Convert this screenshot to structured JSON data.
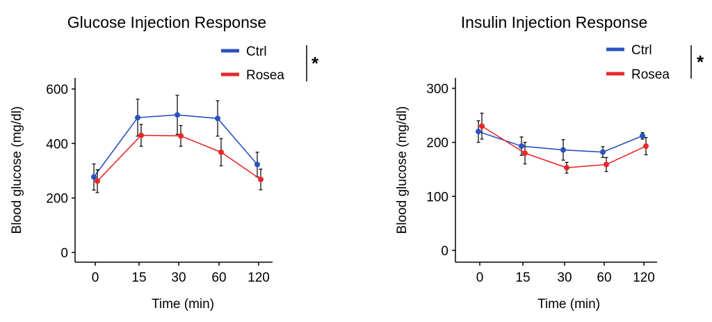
{
  "chart_data": [
    {
      "type": "line",
      "title": "Glucose Injection Response",
      "xlabel": "Time (min)",
      "ylabel": "Blood glucose (mg/dl)",
      "categories": [
        "0",
        "15",
        "30",
        "60",
        "120"
      ],
      "ylim": [
        0,
        620
      ],
      "yticks": [
        0,
        200,
        400,
        600
      ],
      "significance": "*",
      "legend_position": "top-right",
      "series": [
        {
          "name": "Ctrl",
          "color": "#2a52be",
          "values": [
            277,
            495,
            505,
            492,
            323
          ],
          "errors": [
            48,
            68,
            72,
            65,
            45
          ]
        },
        {
          "name": "Rosea",
          "color": "#e8282b",
          "values": [
            262,
            430,
            428,
            368,
            268
          ],
          "errors": [
            42,
            40,
            38,
            50,
            38
          ]
        }
      ]
    },
    {
      "type": "line",
      "title": "Insulin Injection Response",
      "xlabel": "Time (min)",
      "ylabel": "Blood glucose (mg/dl)",
      "categories": [
        "0",
        "15",
        "30",
        "60",
        "120"
      ],
      "ylim": [
        0,
        310
      ],
      "yticks": [
        0,
        100,
        200,
        300
      ],
      "significance": "*",
      "legend_position": "top-right",
      "series": [
        {
          "name": "Ctrl",
          "color": "#2a52be",
          "values": [
            220,
            193,
            186,
            182,
            212
          ],
          "errors": [
            20,
            17,
            19,
            10,
            6
          ]
        },
        {
          "name": "Rosea",
          "color": "#e8282b",
          "values": [
            230,
            180,
            153,
            159,
            193
          ],
          "errors": [
            24,
            20,
            10,
            13,
            16
          ]
        }
      ]
    }
  ]
}
